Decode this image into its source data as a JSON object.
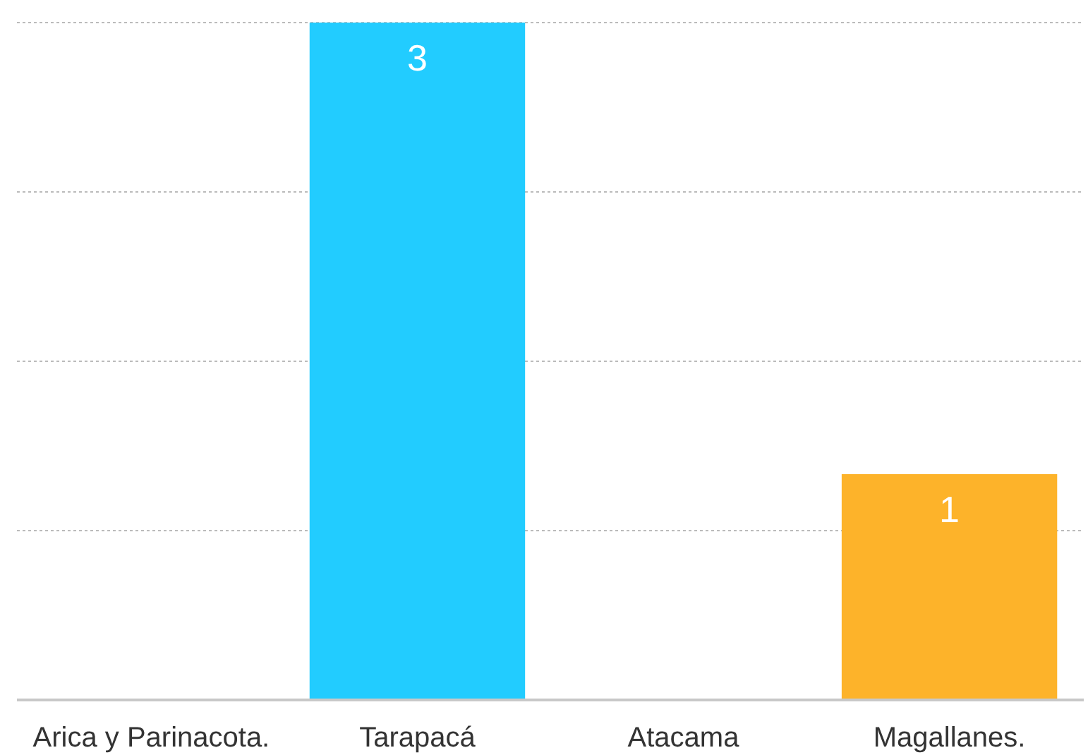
{
  "chart_data": {
    "type": "bar",
    "categories": [
      "Arica y Parinacota.",
      "Tarapacá",
      "Atacama",
      "Magallanes."
    ],
    "values": [
      null,
      3,
      null,
      1
    ],
    "colors": [
      null,
      "#22ccff",
      null,
      "#fdb32a"
    ],
    "ylim": [
      0,
      3
    ],
    "yticks": [
      {
        "value": 0,
        "label": null
      },
      {
        "value": 0.75,
        "label": null
      },
      {
        "value": 1.5,
        "label": null
      },
      {
        "value": 2.25,
        "label": null
      },
      {
        "value": 3,
        "label": null
      }
    ],
    "grid": "y",
    "data_labels": true,
    "tick_labels": "x"
  }
}
